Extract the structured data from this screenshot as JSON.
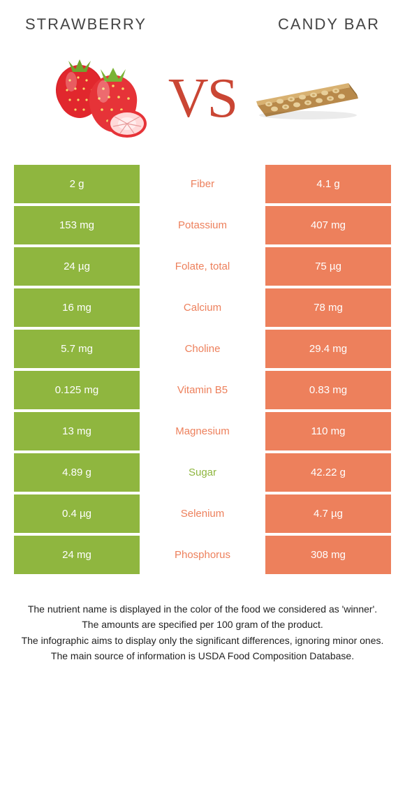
{
  "header": {
    "left_title": "STRAWBERRY",
    "right_title": "CANDY BAR"
  },
  "hero": {
    "vs_label": "VS",
    "vs_color": "#ca4634"
  },
  "colors": {
    "left": "#8fb63f",
    "right": "#ed805c",
    "left_text": "#8fb63f",
    "right_text": "#ed805c"
  },
  "rows": [
    {
      "left": "2 g",
      "label": "Fiber",
      "right": "4.1 g",
      "winner": "right"
    },
    {
      "left": "153 mg",
      "label": "Potassium",
      "right": "407 mg",
      "winner": "right"
    },
    {
      "left": "24 µg",
      "label": "Folate, total",
      "right": "75 µg",
      "winner": "right"
    },
    {
      "left": "16 mg",
      "label": "Calcium",
      "right": "78 mg",
      "winner": "right"
    },
    {
      "left": "5.7 mg",
      "label": "Choline",
      "right": "29.4 mg",
      "winner": "right"
    },
    {
      "left": "0.125 mg",
      "label": "Vitamin B5",
      "right": "0.83 mg",
      "winner": "right"
    },
    {
      "left": "13 mg",
      "label": "Magnesium",
      "right": "110 mg",
      "winner": "right"
    },
    {
      "left": "4.89 g",
      "label": "Sugar",
      "right": "42.22 g",
      "winner": "left"
    },
    {
      "left": "0.4 µg",
      "label": "Selenium",
      "right": "4.7 µg",
      "winner": "right"
    },
    {
      "left": "24 mg",
      "label": "Phosphorus",
      "right": "308 mg",
      "winner": "right"
    }
  ],
  "footer": {
    "line1": "The nutrient name is displayed in the color of the food we considered as 'winner'.",
    "line2": "The amounts are specified per 100 gram of the product.",
    "line3": "The infographic aims to display only the significant differences, ignoring minor ones.",
    "line4": "The main source of information is USDA Food Composition Database."
  }
}
